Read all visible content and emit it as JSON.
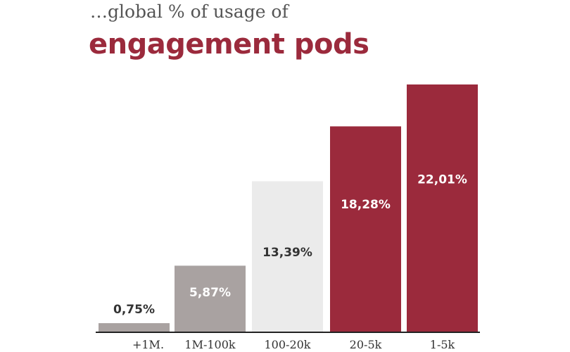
{
  "header": {
    "subtitle": "…global % of usage of",
    "title": "engagement pods"
  },
  "chart_data": {
    "type": "bar",
    "title": "engagement pods",
    "subtitle": "…global % of usage of",
    "categories": [
      "+1M.",
      "1M-100k",
      "100-20k",
      "20-5k",
      "1-5k"
    ],
    "values": [
      0.75,
      5.87,
      13.39,
      18.28,
      22.01
    ],
    "data_labels": [
      "0,75%",
      "5,87%",
      "13,39%",
      "18,28%",
      "22,01%"
    ],
    "colors": [
      "#a9a2a1",
      "#a9a2a1",
      "#ebebeb",
      "#9b2a3c",
      "#9b2a3c"
    ],
    "label_colors": [
      "#333333",
      "#ffffff",
      "#333333",
      "#ffffff",
      "#ffffff"
    ],
    "ylim": [
      0,
      22.01
    ],
    "grid": false,
    "xlabel": "",
    "ylabel": ""
  }
}
